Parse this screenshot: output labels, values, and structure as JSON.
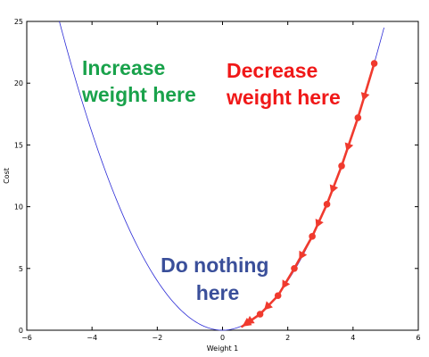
{
  "chart_data": {
    "type": "line",
    "title": "",
    "xlabel": "Weight 1",
    "ylabel": "Cost",
    "xlim": [
      -6,
      6
    ],
    "ylim": [
      0,
      25
    ],
    "x_ticks": [
      -6,
      -4,
      -2,
      0,
      2,
      4,
      6
    ],
    "y_ticks": [
      0,
      5,
      10,
      15,
      20,
      25
    ],
    "x_tick_labels": [
      "−6",
      "−4",
      "−2",
      "0",
      "2",
      "4",
      "6"
    ],
    "y_tick_labels": [
      "0",
      "5",
      "10",
      "15",
      "20",
      "25"
    ],
    "grid": false,
    "series": [
      {
        "kind": "curve",
        "color": "#2b2bd6",
        "x": [
          -5.0,
          -4.5,
          -4.0,
          -3.5,
          -3.0,
          -2.5,
          -2.0,
          -1.5,
          -1.0,
          -0.5,
          0.0,
          0.5,
          1.0,
          1.5,
          2.0,
          2.5,
          3.0,
          3.5,
          4.0,
          4.5,
          4.95
        ],
        "y": [
          25.0,
          20.25,
          16.0,
          12.25,
          9.0,
          6.25,
          4.0,
          2.25,
          1.0,
          0.25,
          0.0,
          0.25,
          1.0,
          2.25,
          4.0,
          6.25,
          9.0,
          12.25,
          16.0,
          20.25,
          24.5
        ]
      },
      {
        "kind": "descent-path",
        "color": "#f03a2e",
        "x": [
          4.65,
          4.15,
          3.65,
          3.2,
          2.75,
          2.2,
          1.7,
          1.15,
          0.6
        ],
        "y": [
          21.6,
          17.2,
          13.3,
          10.2,
          7.6,
          5.0,
          2.8,
          1.3,
          0.3
        ]
      }
    ],
    "annotations": [
      {
        "name": "increase",
        "lines": [
          "Increase",
          "weight here"
        ],
        "color": "#19a24b"
      },
      {
        "name": "decrease",
        "lines": [
          "Decrease",
          "weight here"
        ],
        "color": "#f01818"
      },
      {
        "name": "nothing",
        "lines": [
          "Do nothing",
          "here"
        ],
        "color": "#3a4f9a"
      }
    ]
  }
}
